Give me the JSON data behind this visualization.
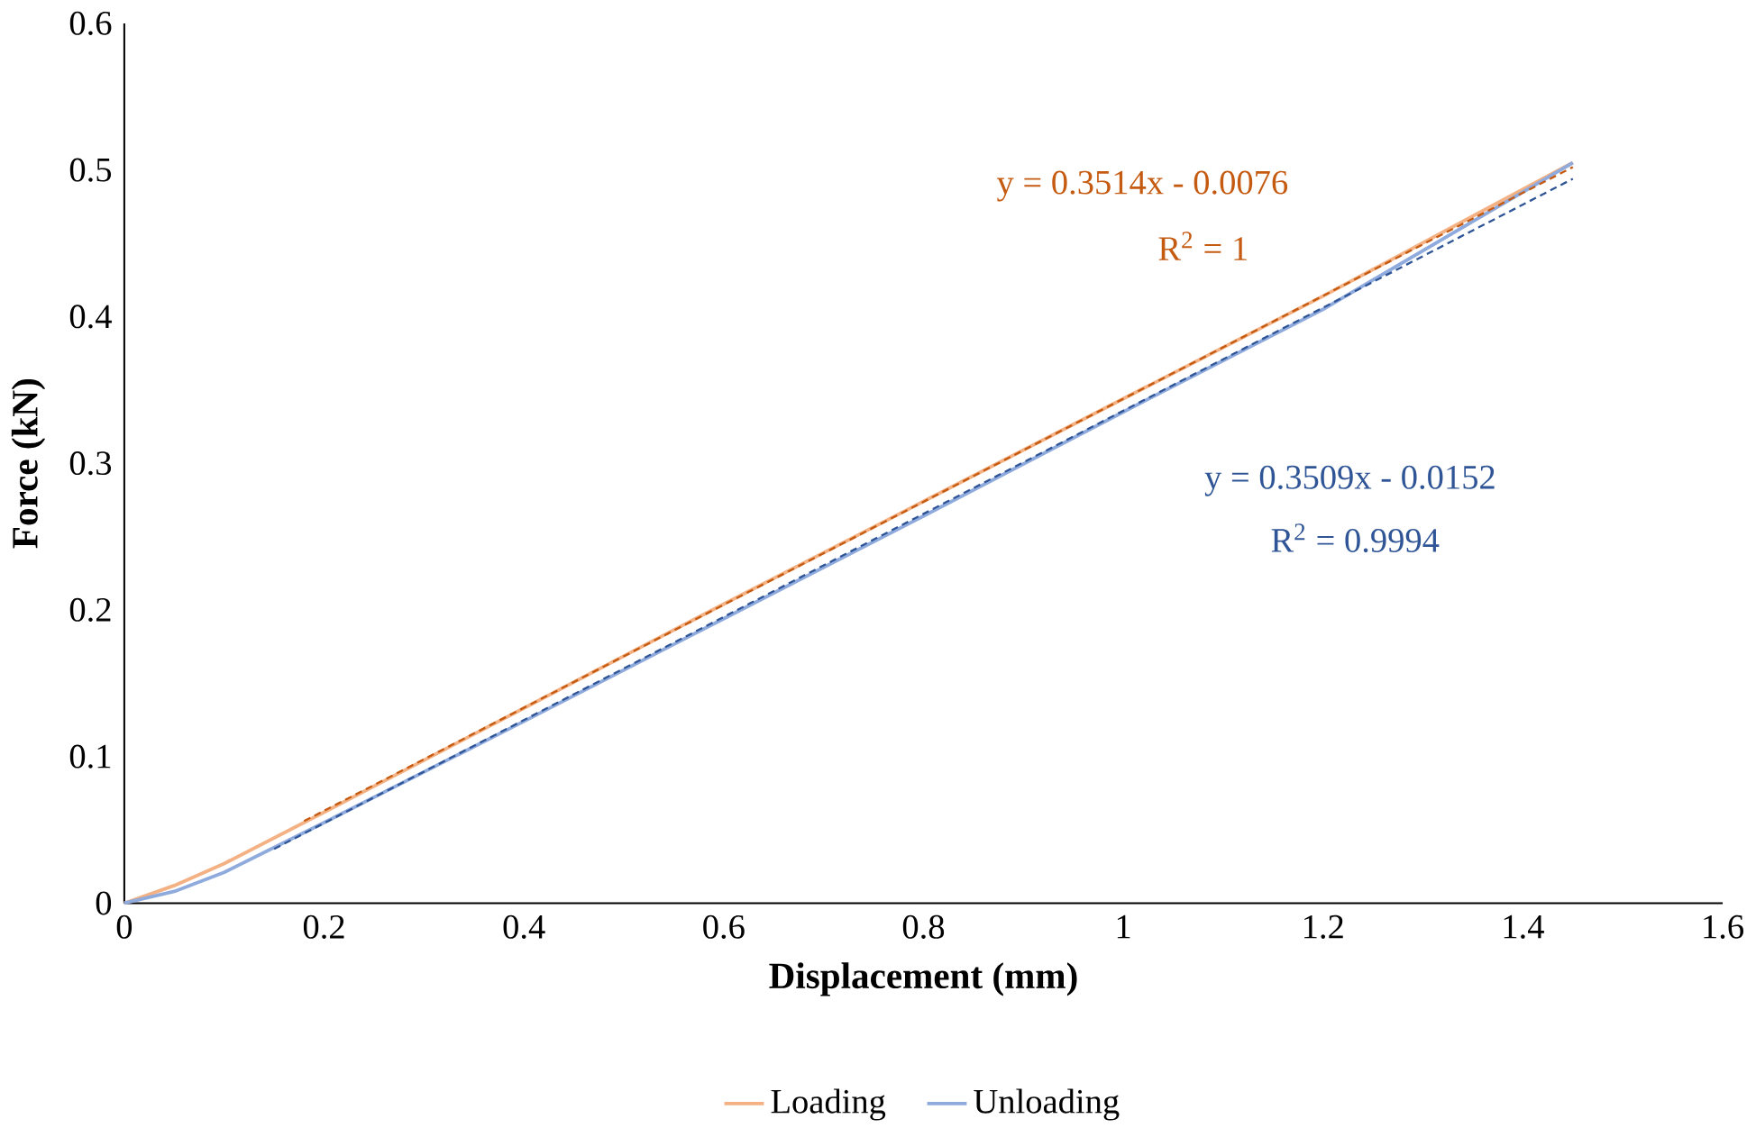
{
  "chart_data": {
    "type": "line",
    "xlabel": "Displacement (mm)",
    "ylabel": "Force (kN)",
    "xlim": [
      0,
      1.6
    ],
    "ylim": [
      0,
      0.6
    ],
    "xticks": [
      0,
      0.2,
      0.4,
      0.6,
      0.8,
      1,
      1.2,
      1.4,
      1.6
    ],
    "yticks": [
      0,
      0.1,
      0.2,
      0.3,
      0.4,
      0.5,
      0.6
    ],
    "legend": "bottom",
    "grid": false,
    "series": [
      {
        "name": "Loading",
        "color": "#f4b183",
        "line_style": "solid",
        "x": [
          0,
          0.05,
          0.1,
          0.2,
          0.4,
          0.6,
          0.8,
          1.0,
          1.2,
          1.45
        ],
        "values": [
          0,
          0.012,
          0.027,
          0.062,
          0.133,
          0.204,
          0.274,
          0.344,
          0.414,
          0.505
        ]
      },
      {
        "name": "Unloading",
        "color": "#8faadc",
        "line_style": "solid",
        "x": [
          0,
          0.05,
          0.1,
          0.2,
          0.4,
          0.6,
          0.8,
          1.0,
          1.2,
          1.45
        ],
        "values": [
          0,
          0.008,
          0.021,
          0.055,
          0.124,
          0.194,
          0.264,
          0.335,
          0.405,
          0.505
        ]
      },
      {
        "color": "#c55a11",
        "line_style": "dashed",
        "x": [
          0.18,
          1.45
        ],
        "values": [
          0.056,
          0.502
        ]
      },
      {
        "color": "#2f5597",
        "line_style": "dashed",
        "x": [
          0.15,
          1.45
        ],
        "values": [
          0.037,
          0.494
        ]
      }
    ],
    "annotations": [
      "y = 0.3514x - 0.0076",
      "R$^{2}$ = 1",
      "y = 0.3509x - 0.0152",
      "R$^{2}$ = 0.9994"
    ]
  }
}
